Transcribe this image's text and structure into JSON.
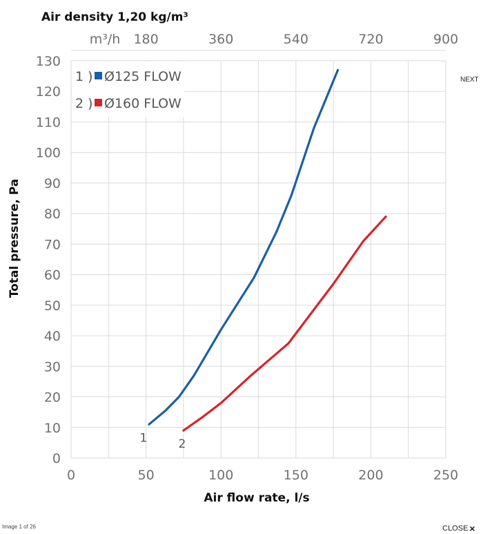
{
  "ui": {
    "next_label": "NEXT",
    "counter_text": "Image 1 of 26",
    "close_label": "CLOSE",
    "close_icon": "×"
  },
  "chart_data": {
    "type": "line",
    "title": "Air density 1,20 kg/m³",
    "xlabel": "Air flow rate, l/s",
    "ylabel": "Total pressure, Pa",
    "xlim": [
      0,
      250
    ],
    "ylim": [
      0,
      130
    ],
    "x_ticks": [
      0,
      50,
      100,
      150,
      200,
      250
    ],
    "y_ticks": [
      0,
      10,
      20,
      30,
      40,
      50,
      60,
      70,
      80,
      90,
      100,
      110,
      120,
      130
    ],
    "secondary_x_axis": {
      "unit_label": "m³/h",
      "ticks": [
        "180",
        "360",
        "540",
        "720",
        "900"
      ],
      "values_m3h": [
        180,
        360,
        540,
        720,
        900
      ]
    },
    "grid": true,
    "legend_position": "top-left",
    "series": [
      {
        "name": "Ø125 FLOW",
        "legend_prefix": "1 )",
        "tag": "1",
        "color": "#1a5ea8",
        "x": [
          52,
          63,
          72,
          82,
          100,
          122,
          137,
          147,
          162,
          178
        ],
        "y": [
          11,
          15.5,
          20,
          27,
          42,
          59,
          74,
          86,
          108,
          127
        ]
      },
      {
        "name": "Ø160 FLOW",
        "legend_prefix": "2 )",
        "tag": "2",
        "color": "#d8232a",
        "x": [
          75,
          88,
          100,
          120,
          145,
          175,
          195,
          210
        ],
        "y": [
          9,
          13.5,
          18,
          27,
          37.5,
          57,
          71,
          79
        ]
      }
    ]
  }
}
